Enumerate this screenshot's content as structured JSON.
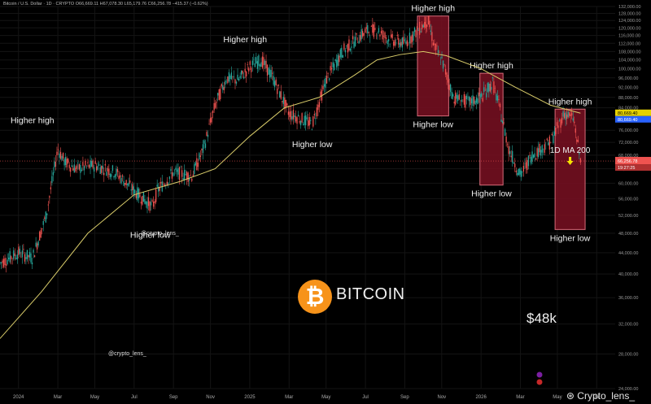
{
  "header": {
    "symbol": "Bitcoin / U.S. Dollar · 1D · CRYPTO",
    "ohlc": "O66,669.11  H67,078.30  L65,179.76  C66,256.78  −415.37 (−0.62%)"
  },
  "colors": {
    "bg": "#000000",
    "grid": "#141414",
    "up": "#26a69a",
    "down": "#ef5350",
    "ma": "#d9cc6a",
    "box_fill": "#7a1022",
    "box_stroke": "#d96b7a",
    "price_line": "#ef5350",
    "btc_orange": "#f7931a"
  },
  "annotations": {
    "brand": "BITCOIN",
    "btc_symbol": "₿",
    "target_price": "$48k",
    "ma_label": "1D MA 200",
    "handle_1": "@crypto_lens_",
    "handle_2": "@crypto_lens_",
    "watermark": "Crypto_lens_"
  },
  "chart_data": {
    "type": "line",
    "title": "Bitcoin / U.S. Dollar · 1D · CRYPTO",
    "xlabel": "",
    "ylabel": "",
    "scale": "log",
    "ylim": [
      24000,
      132000
    ],
    "xlim": [
      2023.92,
      2026.58
    ],
    "y_ticks": [
      24000,
      28000,
      32000,
      36000,
      40000,
      44000,
      48000,
      52000,
      56000,
      60000,
      64000,
      68000,
      72000,
      76000,
      80000,
      84000,
      88000,
      92000,
      96000,
      100000,
      104000,
      108000,
      112000,
      116000,
      120000,
      124000,
      128000,
      132000
    ],
    "y_tick_labels": [
      "24,000.00",
      "28,000.00",
      "32,000.00",
      "36,000.00",
      "40,000.00",
      "44,000.00",
      "48,000.00",
      "52,000.00",
      "56,000.00",
      "60,000.00",
      "64,000.00",
      "68,000.00",
      "72,000.00",
      "76,000.00",
      "80,000.00",
      "84,000.00",
      "88,000.00",
      "92,000.00",
      "96,000.00",
      "100,000.00",
      "104,000.00",
      "108,000.00",
      "112,000.00",
      "116,000.00",
      "120,000.00",
      "124,000.00",
      "128,000.00",
      "132,000.00"
    ],
    "x_ticks": [
      2024.0,
      2024.17,
      2024.33,
      2024.5,
      2024.67,
      2024.83,
      2025.0,
      2025.17,
      2025.33,
      2025.5,
      2025.67,
      2025.83,
      2026.0,
      2026.17,
      2026.33,
      2026.5
    ],
    "x_tick_labels": [
      "2024",
      "Mar",
      "May",
      "Jul",
      "Sep",
      "Nov",
      "2025",
      "Mar",
      "May",
      "Jul",
      "Sep",
      "Nov",
      "2026",
      "Mar",
      "May",
      "Jul"
    ],
    "series": [
      {
        "name": "",
        "kind": "price",
        "x": [
          2023.92,
          2024.0,
          2024.06,
          2024.12,
          2024.17,
          2024.2,
          2024.25,
          2024.33,
          2024.42,
          2024.5,
          2024.58,
          2024.6,
          2024.67,
          2024.75,
          2024.8,
          2024.85,
          2024.9,
          2024.95,
          2025.0,
          2025.05,
          2025.1,
          2025.17,
          2025.22,
          2025.27,
          2025.33,
          2025.4,
          2025.5,
          2025.55,
          2025.6,
          2025.67,
          2025.72,
          2025.77,
          2025.8,
          2025.83,
          2025.88,
          2025.95,
          2026.0,
          2026.05,
          2026.08,
          2026.12,
          2026.17,
          2026.22,
          2026.3,
          2026.36,
          2026.4,
          2026.43
        ],
        "y": [
          42000,
          44000,
          43000,
          52000,
          70000,
          66000,
          64000,
          65000,
          63000,
          58000,
          54000,
          58000,
          63000,
          62000,
          70000,
          85000,
          96000,
          95000,
          101000,
          104000,
          96000,
          82000,
          80000,
          78000,
          95000,
          108000,
          118000,
          119000,
          114000,
          112000,
          118000,
          124000,
          110000,
          104000,
          88000,
          86000,
          88000,
          94000,
          84000,
          70000,
          62000,
          68000,
          72000,
          82000,
          80000,
          66256.78
        ]
      },
      {
        "name": "1D MA 200",
        "kind": "ma",
        "x": [
          2023.92,
          2024.1,
          2024.3,
          2024.5,
          2024.7,
          2024.85,
          2025.0,
          2025.15,
          2025.3,
          2025.45,
          2025.55,
          2025.65,
          2025.75,
          2025.85,
          2026.0,
          2026.15,
          2026.3,
          2026.43
        ],
        "y": [
          30000,
          37000,
          48000,
          57000,
          60500,
          64000,
          74000,
          84000,
          88000,
          97000,
          104000,
          106500,
          108000,
          106000,
          100000,
          92000,
          85000,
          82000
        ]
      }
    ],
    "markers": {
      "current_price": 66256.78,
      "current_price_label": "66,256.78",
      "countdown_label": "19:27:25",
      "ma_value_label": "80,669.40",
      "ma_value_label_2": "80,669.40",
      "target_level": 48000
    },
    "boxes": [
      {
        "x0": 2025.725,
        "x1": 2025.86,
        "y0": 81000,
        "y1": 126500,
        "top_label": "Higher high",
        "bottom_label": "Higher low"
      },
      {
        "x0": 2025.995,
        "x1": 2026.095,
        "y0": 59500,
        "y1": 98000,
        "top_label": "Higher high",
        "bottom_label": "Higher low"
      },
      {
        "x0": 2026.32,
        "x1": 2026.45,
        "y0": 48800,
        "y1": 83500,
        "top_label": "Higher high",
        "bottom_label": "Higher low"
      }
    ],
    "labels": [
      {
        "text": "Higher high",
        "x": 2024.06,
        "y": 78500
      },
      {
        "text": "Higher low",
        "x": 2024.57,
        "y": 47000
      },
      {
        "text": "Higher high",
        "x": 2024.98,
        "y": 112500
      },
      {
        "text": "Higher low",
        "x": 2025.27,
        "y": 70500
      }
    ]
  }
}
